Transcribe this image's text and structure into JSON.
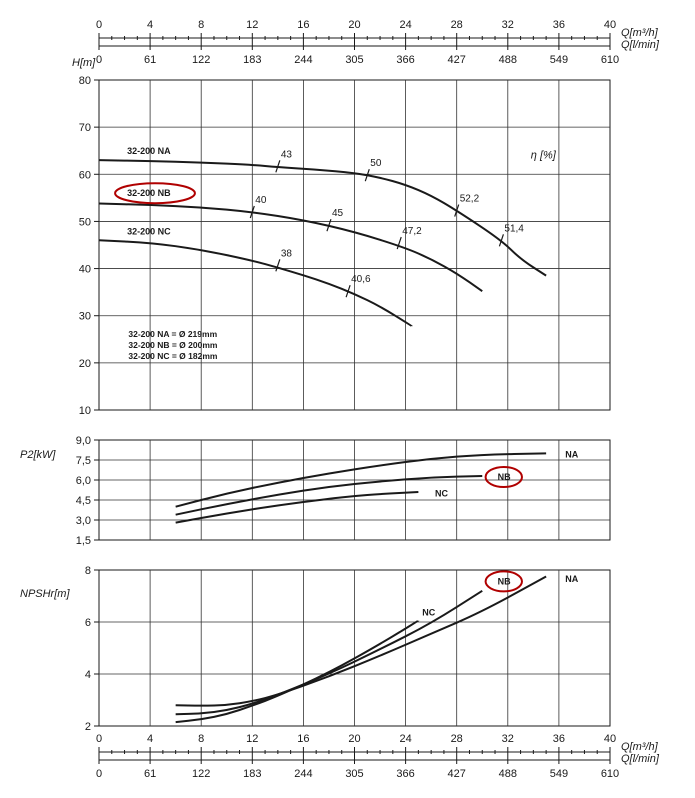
{
  "axes": {
    "q_m3h_label": "Q[m³/h]",
    "q_lmin_label": "Q[l/min]",
    "q_m3h_ticks": [
      "0",
      "4",
      "8",
      "12",
      "16",
      "20",
      "24",
      "28",
      "32",
      "36",
      "40"
    ],
    "q_lmin_ticks": [
      "0",
      "61",
      "122",
      "183",
      "244",
      "305",
      "366",
      "427",
      "488",
      "549",
      "610"
    ]
  },
  "chart_data": [
    {
      "type": "line",
      "ylabel": "H[m]",
      "ylim": [
        10,
        80
      ],
      "yticks": [
        "10",
        "20",
        "30",
        "40",
        "50",
        "60",
        "70",
        "80"
      ],
      "xlim": [
        0,
        40
      ],
      "xlabel": "Q[m³/h]",
      "grid": true,
      "series": [
        {
          "name": "32-200 NA",
          "x": [
            0,
            4,
            8,
            12,
            14,
            17,
            20,
            22,
            24,
            26,
            28,
            31.5,
            33,
            35
          ],
          "y": [
            63,
            62.8,
            62.5,
            62,
            61.5,
            61,
            60.3,
            59.3,
            57.8,
            55.5,
            52.3,
            46,
            42,
            38.5
          ]
        },
        {
          "name": "32-200 NB",
          "x": [
            0,
            4,
            8,
            12,
            16,
            20,
            24,
            26,
            28,
            30
          ],
          "y": [
            53.8,
            53.5,
            53,
            52,
            50.3,
            47.8,
            44.4,
            42,
            39,
            35.2
          ]
        },
        {
          "name": "32-200 NC",
          "x": [
            0,
            4,
            8,
            12,
            14,
            16,
            18,
            20,
            22,
            24.5
          ],
          "y": [
            46,
            45.5,
            44,
            41.7,
            40.2,
            38.6,
            36.8,
            34.6,
            32,
            27.8
          ]
        }
      ],
      "efficiency_label": "η [%]",
      "efficiency_marks": [
        {
          "label": "43",
          "x": 14,
          "y": 61.7
        },
        {
          "label": "50",
          "x": 21,
          "y": 59.8
        },
        {
          "label": "52,2",
          "x": 28,
          "y": 52.3
        },
        {
          "label": "51,4",
          "x": 31.5,
          "y": 46
        },
        {
          "label": "40",
          "x": 12,
          "y": 52
        },
        {
          "label": "45",
          "x": 18,
          "y": 49.2
        },
        {
          "label": "47,2",
          "x": 23.5,
          "y": 45.4
        },
        {
          "label": "38",
          "x": 14,
          "y": 40.7
        },
        {
          "label": "40,6",
          "x": 19.5,
          "y": 35.2
        }
      ],
      "curve_labels": [
        {
          "text": "32-200 NA",
          "x": 2.2,
          "y": 65.1,
          "highlight": false
        },
        {
          "text": "32-200 NB",
          "x": 2.2,
          "y": 56.2,
          "highlight": true
        },
        {
          "text": "32-200 NC",
          "x": 2.2,
          "y": 48.1,
          "highlight": false
        }
      ],
      "diameter_notes": [
        "32-200 NA = Ø 219mm",
        "32-200 NB = Ø 200mm",
        "32-200 NC = Ø 182mm"
      ]
    },
    {
      "type": "line",
      "ylabel": "P2[kW]",
      "ylim": [
        1.5,
        9.0
      ],
      "yticks": [
        "1,5",
        "3,0",
        "4,5",
        "6,0",
        "7,5",
        "9,0"
      ],
      "xlim": [
        0,
        40
      ],
      "grid": true,
      "series": [
        {
          "name": "NA",
          "x": [
            6,
            10,
            14,
            18,
            22,
            26,
            30,
            35
          ],
          "y": [
            4.0,
            5.0,
            5.8,
            6.5,
            7.1,
            7.6,
            7.9,
            8.0
          ]
        },
        {
          "name": "NB",
          "x": [
            6,
            10,
            14,
            18,
            22,
            26,
            30
          ],
          "y": [
            3.4,
            4.2,
            4.9,
            5.5,
            5.9,
            6.2,
            6.3
          ]
        },
        {
          "name": "NC",
          "x": [
            6,
            10,
            14,
            18,
            20,
            22,
            25
          ],
          "y": [
            2.8,
            3.5,
            4.1,
            4.6,
            4.8,
            4.95,
            5.1
          ]
        }
      ],
      "curve_labels": [
        {
          "text": "NA",
          "x": 36.5,
          "y": 8.0,
          "highlight": false
        },
        {
          "text": "NB",
          "x": 31.2,
          "y": 6.3,
          "highlight": true
        },
        {
          "text": "NC",
          "x": 26.3,
          "y": 5.05,
          "highlight": false
        }
      ]
    },
    {
      "type": "line",
      "ylabel": "NPSHr[m]",
      "ylim": [
        2,
        8
      ],
      "yticks": [
        "2",
        "4",
        "6",
        "8"
      ],
      "xlim": [
        0,
        40
      ],
      "xlabel": "Q[m³/h]",
      "grid": true,
      "series": [
        {
          "name": "NA",
          "x": [
            6,
            8,
            10,
            12,
            14,
            18,
            22,
            26,
            30,
            35
          ],
          "y": [
            2.8,
            2.78,
            2.8,
            2.95,
            3.2,
            3.9,
            4.7,
            5.55,
            6.4,
            7.75
          ]
        },
        {
          "name": "NB",
          "x": [
            6,
            8,
            10,
            12,
            14,
            18,
            22,
            26,
            30
          ],
          "y": [
            2.45,
            2.48,
            2.6,
            2.85,
            3.2,
            4.0,
            4.95,
            5.95,
            7.2
          ]
        },
        {
          "name": "NC",
          "x": [
            6,
            8,
            10,
            12,
            14,
            18,
            22,
            25
          ],
          "y": [
            2.15,
            2.25,
            2.45,
            2.78,
            3.15,
            4.05,
            5.15,
            6.05
          ]
        }
      ],
      "curve_labels": [
        {
          "text": "NA",
          "x": 36.5,
          "y": 7.7,
          "highlight": false
        },
        {
          "text": "NB",
          "x": 31.2,
          "y": 7.6,
          "highlight": true
        },
        {
          "text": "NC",
          "x": 25.3,
          "y": 6.4,
          "highlight": false
        }
      ]
    }
  ],
  "colors": {
    "ink": "#1a1a1a",
    "grid": "#333333",
    "highlight": "#b00000"
  }
}
